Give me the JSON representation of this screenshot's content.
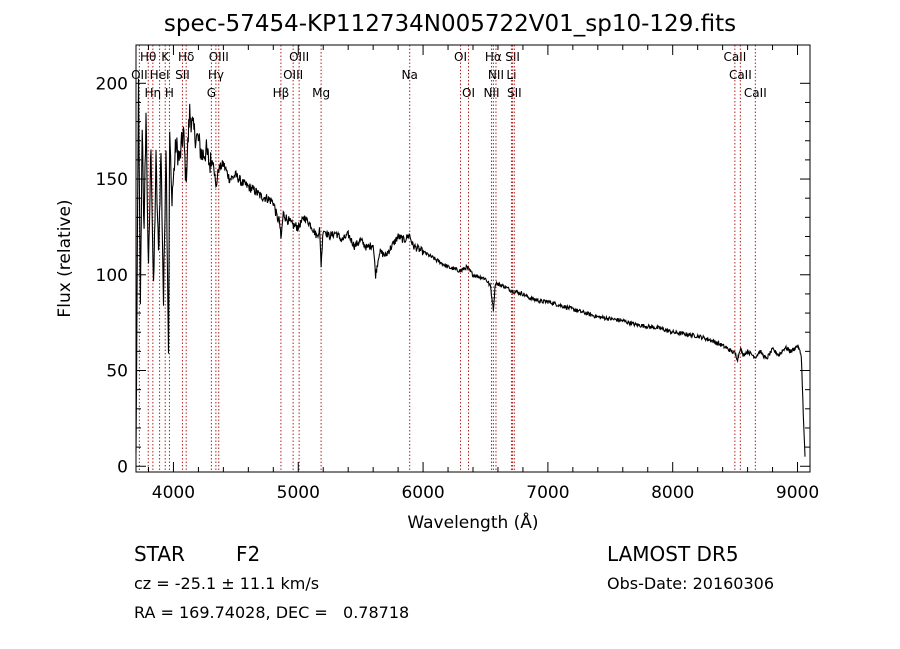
{
  "title": "spec-57454-KP112734N005722V01_sp10-129.fits",
  "info": {
    "class": "STAR",
    "subclass": "F2",
    "survey": "LAMOST DR5",
    "cz": "cz = -25.1 ± 11.1 km/s",
    "obs_date": "Obs-Date: 20160306",
    "coords": "RA = 169.74028, DEC =   0.78718"
  },
  "colors": {
    "axis": "#000000",
    "spectrum": "#000000",
    "lines": "#b22222"
  },
  "chart_data": {
    "type": "line",
    "title": "spec-57454-KP112734N005722V01_sp10-129.fits",
    "xlabel": "Wavelength (Å)",
    "ylabel": "Flux (relative)",
    "xlim": [
      3700,
      9100
    ],
    "ylim": [
      -3,
      220
    ],
    "x_ticks": [
      4000,
      5000,
      6000,
      7000,
      8000,
      9000
    ],
    "y_ticks": [
      0,
      50,
      100,
      150,
      200
    ],
    "grid": false,
    "series": [
      {
        "x": [
          3700,
          3720,
          3735,
          3750,
          3765,
          3780,
          3800,
          3820,
          3840,
          3860,
          3880,
          3900,
          3920,
          3940,
          3960,
          3970,
          3985,
          4000,
          4020,
          4050,
          4080,
          4100,
          4130,
          4160,
          4200,
          4230,
          4260,
          4290,
          4320,
          4340,
          4360,
          4400,
          4450,
          4500,
          4550,
          4600,
          4650,
          4700,
          4750,
          4800,
          4830,
          4850,
          4861,
          4880,
          4900,
          4950,
          5000,
          5050,
          5100,
          5150,
          5170,
          5183,
          5200,
          5250,
          5300,
          5350,
          5400,
          5450,
          5500,
          5550,
          5600,
          5620,
          5650,
          5700,
          5750,
          5800,
          5850,
          5890,
          5920,
          5950,
          6000,
          6050,
          6100,
          6150,
          6200,
          6250,
          6300,
          6350,
          6400,
          6450,
          6500,
          6540,
          6563,
          6580,
          6600,
          6650,
          6700,
          6750,
          6800,
          6850,
          6900,
          6950,
          7000,
          7100,
          7200,
          7300,
          7400,
          7500,
          7600,
          7700,
          7800,
          7900,
          8000,
          8100,
          8200,
          8300,
          8400,
          8498,
          8520,
          8542,
          8560,
          8600,
          8662,
          8700,
          8750,
          8800,
          8850,
          8900,
          8950,
          9000,
          9030,
          9050,
          9060
        ],
        "values": [
          5,
          200,
          80,
          180,
          120,
          185,
          100,
          170,
          90,
          160,
          110,
          165,
          85,
          170,
          60,
          175,
          140,
          150,
          168,
          160,
          175,
          150,
          185,
          175,
          170,
          162,
          165,
          158,
          160,
          145,
          155,
          158,
          150,
          152,
          148,
          146,
          144,
          141,
          140,
          138,
          130,
          128,
          118,
          132,
          130,
          126,
          125,
          130,
          126,
          120,
          124,
          105,
          124,
          120,
          122,
          118,
          121,
          115,
          118,
          114,
          116,
          100,
          112,
          110,
          115,
          120,
          118,
          121,
          115,
          114,
          112,
          110,
          108,
          106,
          104,
          103,
          102,
          104,
          100,
          99,
          98,
          94,
          82,
          96,
          95,
          94,
          92,
          91,
          90,
          88,
          87,
          86,
          86,
          84,
          82,
          80,
          78,
          77,
          76,
          74,
          73,
          72,
          70,
          69,
          68,
          66,
          63,
          59,
          56,
          62,
          58,
          60,
          57,
          60,
          56,
          61,
          58,
          62,
          60,
          63,
          58,
          20,
          5
        ]
      }
    ],
    "line_markers": [
      {
        "label": "Hθ",
        "x": 3798,
        "row": 0
      },
      {
        "label": "K",
        "x": 3934,
        "row": 0
      },
      {
        "label": "Hδ",
        "x": 4102,
        "row": 0
      },
      {
        "label": "OIII",
        "x": 4363,
        "row": 0
      },
      {
        "label": "OIII",
        "x": 5007,
        "row": 0
      },
      {
        "label": "OI",
        "x": 6300,
        "row": 0
      },
      {
        "label": "Hα",
        "x": 6563,
        "row": 0
      },
      {
        "label": "SII",
        "x": 6717,
        "row": 0
      },
      {
        "label": "CaII",
        "x": 8498,
        "row": 0
      },
      {
        "label": "OII",
        "x": 3727,
        "row": 1
      },
      {
        "label": "HeI",
        "x": 3889,
        "row": 1
      },
      {
        "label": "SII",
        "x": 4072,
        "row": 1
      },
      {
        "label": "Hγ",
        "x": 4340,
        "row": 1
      },
      {
        "label": "OIII",
        "x": 4959,
        "row": 1
      },
      {
        "label": "Na",
        "x": 5893,
        "row": 1
      },
      {
        "label": "NII",
        "x": 6584,
        "row": 1
      },
      {
        "label": "Li",
        "x": 6708,
        "row": 1
      },
      {
        "label": "CaII",
        "x": 8542,
        "row": 1
      },
      {
        "label": "Hη",
        "x": 3835,
        "row": 2
      },
      {
        "label": "H",
        "x": 3968,
        "row": 2
      },
      {
        "label": "G",
        "x": 4304,
        "row": 2
      },
      {
        "label": "Hβ",
        "x": 4861,
        "row": 2
      },
      {
        "label": "Mg",
        "x": 5183,
        "row": 2
      },
      {
        "label": "OI",
        "x": 6364,
        "row": 2
      },
      {
        "label": "NII",
        "x": 6548,
        "row": 2
      },
      {
        "label": "SII",
        "x": 6731,
        "row": 2
      },
      {
        "label": "CaII",
        "x": 8662,
        "row": 2
      }
    ]
  }
}
